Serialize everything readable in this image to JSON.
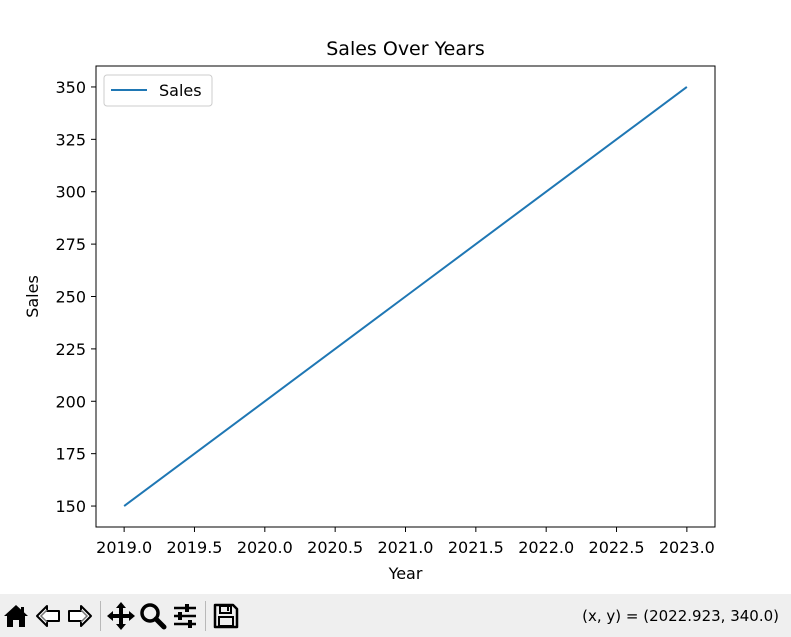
{
  "chart_data": {
    "type": "line",
    "title": "Sales Over Years",
    "xlabel": "Year",
    "ylabel": "Sales",
    "xlim": [
      2018.8,
      2023.2
    ],
    "ylim": [
      140,
      360
    ],
    "xticks": [
      "2019.0",
      "2019.5",
      "2020.0",
      "2020.5",
      "2021.0",
      "2021.5",
      "2022.0",
      "2022.5",
      "2023.0"
    ],
    "yticks": [
      "150",
      "175",
      "200",
      "225",
      "250",
      "275",
      "300",
      "325",
      "350"
    ],
    "x": [
      2019,
      2020,
      2021,
      2022,
      2023
    ],
    "series": [
      {
        "name": "Sales",
        "values": [
          150,
          200,
          250,
          300,
          350
        ],
        "color": "#1f77b4"
      }
    ],
    "legend": {
      "placement": "upper-left",
      "entries": [
        "Sales"
      ]
    },
    "grid": false
  },
  "toolbar": {
    "buttons": [
      {
        "name": "home-icon",
        "action": "home"
      },
      {
        "name": "back-arrow-icon",
        "action": "back"
      },
      {
        "name": "forward-arrow-icon",
        "action": "forward"
      },
      {
        "name": "pan-icon",
        "action": "pan"
      },
      {
        "name": "zoom-icon",
        "action": "zoom"
      },
      {
        "name": "configure-subplots-icon",
        "action": "configure"
      },
      {
        "name": "save-icon",
        "action": "save"
      }
    ],
    "coords_text": "(x, y) = (2022.923, 340.0)"
  }
}
